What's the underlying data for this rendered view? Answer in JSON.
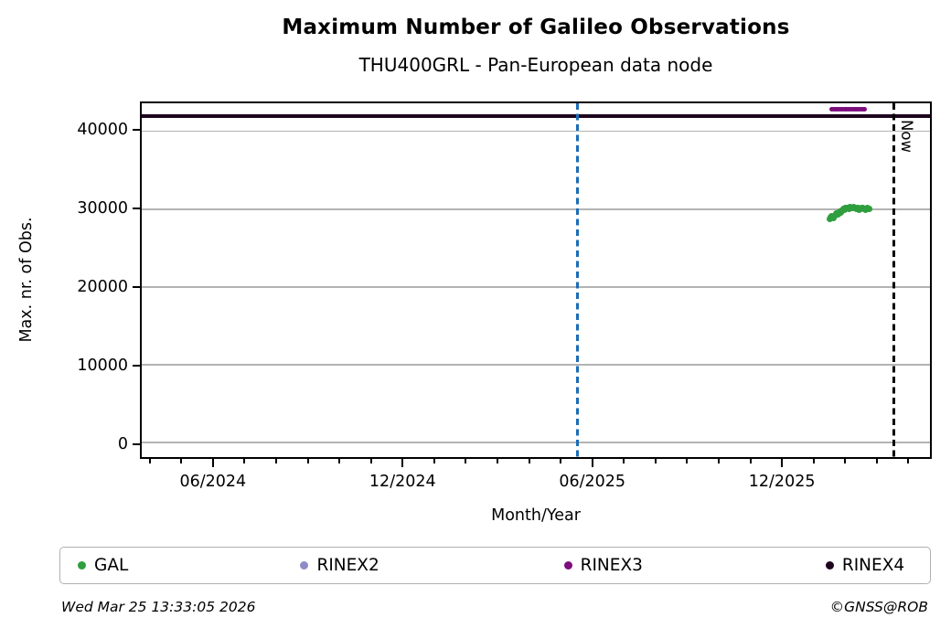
{
  "chart_data": {
    "type": "scatter",
    "title": "Maximum Number of Galileo Observations",
    "subtitle": "THU400GRL - Pan-European data node",
    "xlabel": "Month/Year",
    "ylabel": "Max. nr. of Obs.",
    "x_axis": {
      "unit": "months_since_2024_01",
      "range_months": [
        2.69,
        27.74
      ],
      "major_ticks": [
        {
          "m": 5,
          "label": "06/2024"
        },
        {
          "m": 11,
          "label": "12/2024"
        },
        {
          "m": 17,
          "label": "06/2025"
        },
        {
          "m": 23,
          "label": "12/2025"
        }
      ],
      "minor_tick_months": [
        3,
        4,
        6,
        7,
        8,
        9,
        10,
        12,
        13,
        14,
        15,
        16,
        18,
        19,
        20,
        21,
        22,
        24,
        25,
        26,
        27
      ]
    },
    "y_axis": {
      "range": [
        -1860,
        43600
      ],
      "ticks": [
        0,
        10000,
        20000,
        30000,
        40000
      ],
      "grid": true,
      "grid_color": "#b3b3b3"
    },
    "series": [
      {
        "name": "GAL",
        "color": "#2f9e3e",
        "marker_px": 7,
        "points": [
          [
            24.55,
            28700
          ],
          [
            24.59,
            28950
          ],
          [
            24.62,
            29100
          ],
          [
            24.66,
            28850
          ],
          [
            24.7,
            29050
          ],
          [
            24.73,
            29250
          ],
          [
            24.77,
            29400
          ],
          [
            24.81,
            29300
          ],
          [
            24.84,
            29550
          ],
          [
            24.88,
            29700
          ],
          [
            24.92,
            29600
          ],
          [
            24.95,
            29850
          ],
          [
            24.99,
            30000
          ],
          [
            25.03,
            29950
          ],
          [
            25.06,
            30100
          ],
          [
            25.1,
            30200
          ],
          [
            25.14,
            30150
          ],
          [
            25.17,
            30050
          ],
          [
            25.21,
            30250
          ],
          [
            25.25,
            30150
          ],
          [
            25.28,
            30100
          ],
          [
            25.32,
            30250
          ],
          [
            25.36,
            30150
          ],
          [
            25.39,
            30050
          ],
          [
            25.43,
            30150
          ],
          [
            25.47,
            30100
          ],
          [
            25.5,
            29950
          ],
          [
            25.54,
            30050
          ],
          [
            25.58,
            30150
          ],
          [
            25.61,
            30100
          ],
          [
            25.65,
            30000
          ],
          [
            25.69,
            29950
          ],
          [
            25.72,
            30050
          ],
          [
            25.76,
            30100
          ],
          [
            25.8,
            29980
          ],
          [
            25.82,
            30020
          ]
        ]
      },
      {
        "name": "RINEX2",
        "color": "#8c8cc8",
        "marker_px": 6,
        "points": []
      },
      {
        "name": "RINEX3",
        "color": "#7d0d7d",
        "marker_px": 5,
        "points": [
          [
            24.61,
            42800
          ],
          [
            24.66,
            42800
          ],
          [
            24.72,
            42800
          ],
          [
            24.77,
            42800
          ],
          [
            24.82,
            42800
          ],
          [
            24.88,
            42800
          ],
          [
            24.93,
            42800
          ],
          [
            24.98,
            42800
          ],
          [
            25.04,
            42800
          ],
          [
            25.09,
            42800
          ],
          [
            25.14,
            42800
          ],
          [
            25.2,
            42800
          ],
          [
            25.25,
            42800
          ],
          [
            25.3,
            42800
          ],
          [
            25.36,
            42800
          ],
          [
            25.41,
            42800
          ],
          [
            25.46,
            42800
          ],
          [
            25.52,
            42800
          ],
          [
            25.57,
            42800
          ],
          [
            25.62,
            42800
          ],
          [
            25.67,
            42800
          ]
        ]
      },
      {
        "name": "RINEX4",
        "color": "#1e051e",
        "marker_px": 6,
        "points": [],
        "hline_value": 42000,
        "hline_extent": "full_width"
      }
    ],
    "annotations": {
      "vlines": [
        {
          "m": 16.53,
          "style": "dashed",
          "color": "#1b6cb5",
          "label": ""
        },
        {
          "m": 26.59,
          "style": "dashed",
          "color": "#000000",
          "label": "Now"
        }
      ]
    },
    "legend_position": "bottom",
    "legend_labels": [
      "GAL",
      "RINEX2",
      "RINEX3",
      "RINEX4"
    ]
  },
  "footer": {
    "timestamp": "Wed Mar 25 13:33:05 2026",
    "credit": "©GNSS@ROB"
  }
}
